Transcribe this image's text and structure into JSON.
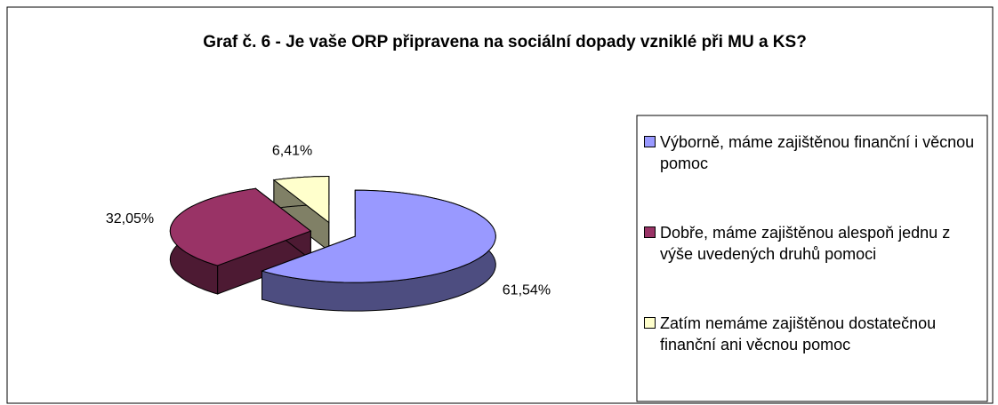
{
  "chart_data": {
    "type": "pie3d",
    "title": "Graf č. 6 - Je vaše ORP připravena na sociální dopady vzniklé při MU a KS?",
    "categories": [
      "Výborně, máme zajištěnou finanční i věcnou pomoc",
      "Dobře, máme zajištěnou alespoň jednu z výše uvedených druhů pomoci",
      "Zatím nemáme zajištěnou dostatečnou finanční ani věcnou pomoc"
    ],
    "values": [
      61.54,
      32.05,
      6.41
    ],
    "value_labels": [
      "61,54%",
      "32,05%",
      "6,41%"
    ],
    "colors": [
      "#9999ff",
      "#993366",
      "#ffffcc"
    ],
    "legend": "right"
  }
}
